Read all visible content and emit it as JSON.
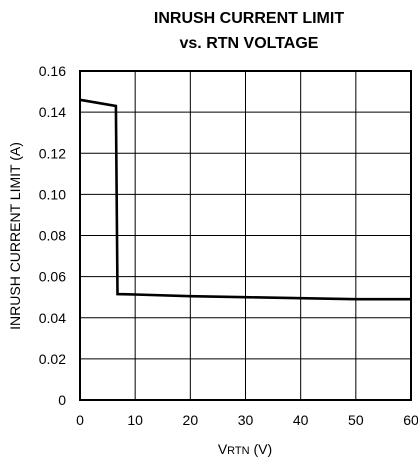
{
  "chart_data": {
    "type": "line",
    "title": [
      "INRUSH CURRENT LIMIT",
      "vs. RTN VOLTAGE"
    ],
    "xlabel": {
      "main": "V",
      "sub": "RTN",
      "unit": " (V)"
    },
    "ylabel": "INRUSH CURRENT LIMIT (A)",
    "xlim": [
      0,
      60
    ],
    "ylim": [
      0,
      0.16
    ],
    "x_ticks": [
      "0",
      "10",
      "20",
      "30",
      "40",
      "50",
      "60"
    ],
    "y_ticks": [
      "0",
      "0.02",
      "0.04",
      "0.06",
      "0.08",
      "0.10",
      "0.12",
      "0.14",
      "0.16"
    ],
    "grid": true,
    "series": [
      {
        "x": [
          0,
          6.5,
          6.8,
          10,
          20,
          30,
          40,
          50,
          60
        ],
        "y": [
          0.146,
          0.143,
          0.0515,
          0.0513,
          0.0505,
          0.05,
          0.0495,
          0.049,
          0.049
        ]
      }
    ]
  }
}
